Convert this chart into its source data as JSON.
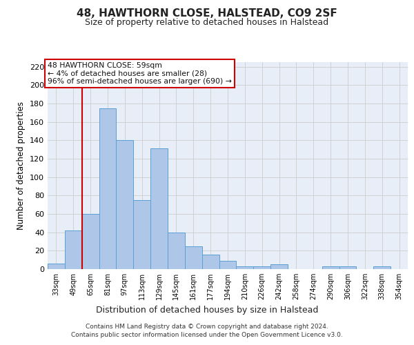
{
  "title": "48, HAWTHORN CLOSE, HALSTEAD, CO9 2SF",
  "subtitle": "Size of property relative to detached houses in Halstead",
  "xlabel": "Distribution of detached houses by size in Halstead",
  "ylabel": "Number of detached properties",
  "bar_labels": [
    "33sqm",
    "49sqm",
    "65sqm",
    "81sqm",
    "97sqm",
    "113sqm",
    "129sqm",
    "145sqm",
    "161sqm",
    "177sqm",
    "194sqm",
    "210sqm",
    "226sqm",
    "242sqm",
    "258sqm",
    "274sqm",
    "290sqm",
    "306sqm",
    "322sqm",
    "338sqm",
    "354sqm"
  ],
  "bar_values": [
    6,
    42,
    60,
    175,
    140,
    75,
    131,
    40,
    25,
    16,
    9,
    3,
    3,
    5,
    0,
    0,
    3,
    3,
    0,
    3,
    0
  ],
  "bar_color": "#aec6e8",
  "bar_edge_color": "#5a9fd4",
  "grid_color": "#cccccc",
  "bg_color": "#e8eef8",
  "red_line_x": 1.5,
  "annotation_text": "48 HAWTHORN CLOSE: 59sqm\n← 4% of detached houses are smaller (28)\n96% of semi-detached houses are larger (690) →",
  "annotation_box_color": "#ffffff",
  "annotation_border_color": "#cc0000",
  "footer_line1": "Contains HM Land Registry data © Crown copyright and database right 2024.",
  "footer_line2": "Contains public sector information licensed under the Open Government Licence v3.0.",
  "ylim": [
    0,
    225
  ],
  "yticks": [
    0,
    20,
    40,
    60,
    80,
    100,
    120,
    140,
    160,
    180,
    200,
    220
  ]
}
